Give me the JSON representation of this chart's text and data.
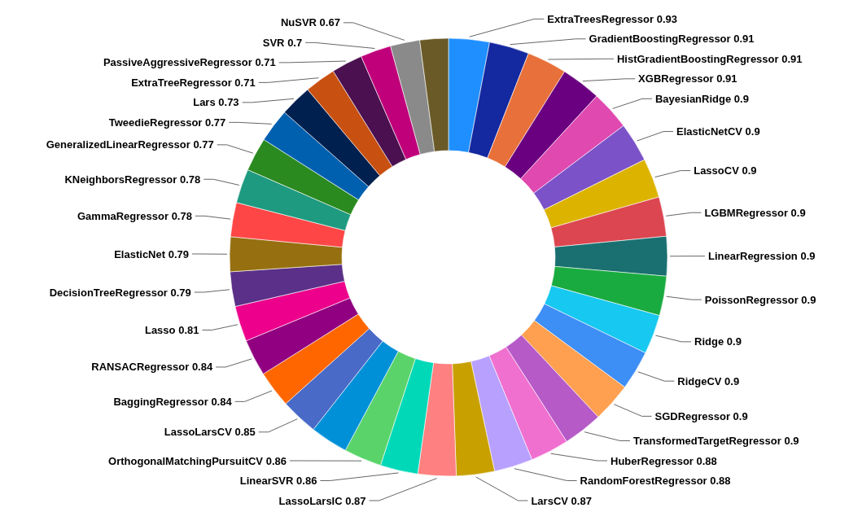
{
  "chart_data": {
    "type": "donut",
    "value_labels": [
      "0.93",
      "0.91",
      "0.91",
      "0.91",
      "0.9",
      "0.9",
      "0.9",
      "0.9",
      "0.9",
      "0.9",
      "0.9",
      "0.9",
      "0.9",
      "0.9",
      "0.88",
      "0.88",
      "0.87",
      "0.87",
      "0.86",
      "0.86",
      null,
      "0.85",
      "0.84",
      "0.84",
      "0.81",
      "0.79",
      "0.79",
      "0.78",
      "0.78",
      "0.77",
      "0.77",
      "0.73",
      "0.71",
      "0.71",
      "0.7",
      "0.67",
      null
    ],
    "categories": [
      "ExtraTreesRegressor",
      "GradientBoostingRegressor",
      "HistGradientBoostingRegressor",
      "XGBRegressor",
      "BayesianRidge",
      "ElasticNetCV",
      "LassoCV",
      "LGBMRegressor",
      "LinearRegression",
      "PoissonRegressor",
      "Ridge",
      "RidgeCV",
      "SGDRegressor",
      "TransformedTargetRegressor",
      "HuberRegressor",
      "RandomForestRegressor",
      "LarsCV",
      "LassoLarsIC",
      "LinearSVR",
      "OrthogonalMatchingPursuitCV",
      null,
      "LassoLarsCV",
      "BaggingRegressor",
      "RANSACRegressor",
      "Lasso",
      "DecisionTreeRegressor",
      "ElasticNet",
      "GammaRegressor",
      "KNeighborsRegressor",
      "GeneralizedLinearRegressor",
      "TweedieRegressor",
      "Lars",
      "ExtraTreeRegressor",
      "PassiveAggressiveRegressor",
      "SVR",
      "NuSVR",
      null
    ],
    "values": [
      0.93,
      0.91,
      0.91,
      0.91,
      0.9,
      0.9,
      0.9,
      0.9,
      0.9,
      0.9,
      0.9,
      0.9,
      0.9,
      0.9,
      0.88,
      0.88,
      0.87,
      0.87,
      0.86,
      0.86,
      0.86,
      0.85,
      0.84,
      0.84,
      0.81,
      0.79,
      0.79,
      0.78,
      0.78,
      0.77,
      0.77,
      0.73,
      0.71,
      0.71,
      0.7,
      0.67,
      0.65
    ],
    "colors": [
      "#1f8fff",
      "#1428a0",
      "#e8703a",
      "#6a0080",
      "#e04ab0",
      "#7b52c8",
      "#dcb400",
      "#dc4650",
      "#1a7070",
      "#1aab40",
      "#17c8f0",
      "#3d8ef5",
      "#ffa050",
      "#b65ac8",
      "#f070d0",
      "#b8a0ff",
      "#c8a000",
      "#ff8080",
      "#00d8b8",
      "#5ad46a",
      "#0090d8",
      "#4a6ac8",
      "#ff6600",
      "#900080",
      "#ec008c",
      "#5a3088",
      "#967010",
      "#ff4646",
      "#1e9a80",
      "#2a8a20",
      "#0060b0",
      "#002050",
      "#c85010",
      "#4a1050",
      "#c0007a",
      "#8a8a8a",
      "#6a5a28"
    ]
  }
}
